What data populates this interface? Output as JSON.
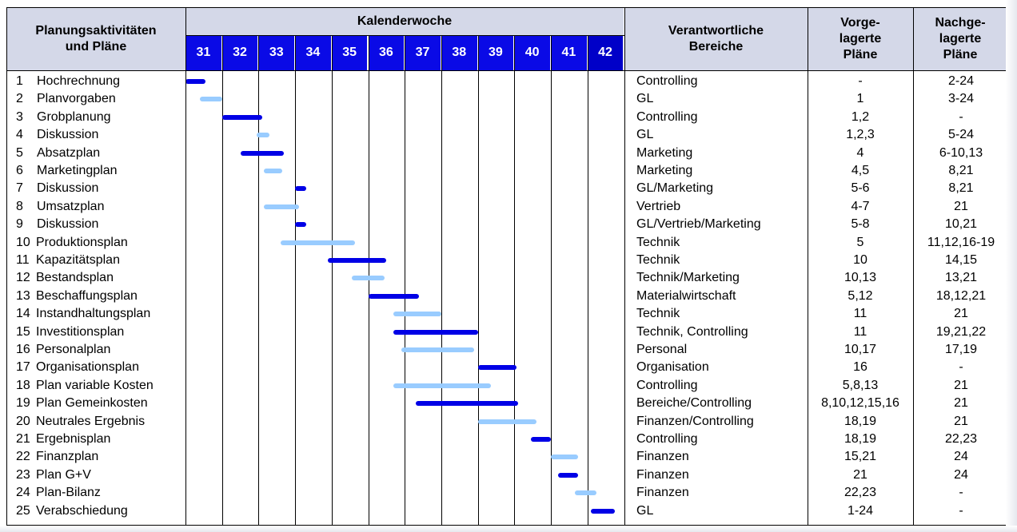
{
  "header": {
    "activities": "Planungsaktivitäten\nund Pläne",
    "calendar_week": "Kalenderwoche",
    "responsible": "Verantwortliche\nBereiche",
    "upstream": "Vorge-\nlagerte\nPläne",
    "downstream": "Nachge-\nlagerte\nPläne"
  },
  "colors": {
    "primary_bar": "#0000e6",
    "secondary_bar": "#99ccff",
    "week_header": "#0a0ae6",
    "header_bg": "#d4d8e8"
  },
  "chart_data": {
    "type": "gantt",
    "x_axis_label": "Kalenderwoche",
    "weeks": [
      "31",
      "32",
      "33",
      "34",
      "35",
      "36",
      "37",
      "38",
      "39",
      "40",
      "41",
      "42"
    ],
    "tasks": [
      {
        "num": "1",
        "name": "Hochrechnung",
        "responsible": "Controlling",
        "upstream": "-",
        "downstream": "2-24",
        "start": 31.0,
        "end": 31.55,
        "color": "dark"
      },
      {
        "num": "2",
        "name": "Planvorgaben",
        "responsible": "GL",
        "upstream": "1",
        "downstream": "3-24",
        "start": 31.4,
        "end": 32.0,
        "color": "light"
      },
      {
        "num": "3",
        "name": "Grobplanung",
        "responsible": "Controlling",
        "upstream": "1,2",
        "downstream": "-",
        "start": 32.0,
        "end": 33.1,
        "color": "dark"
      },
      {
        "num": "4",
        "name": "Diskussion",
        "responsible": "GL",
        "upstream": "1,2,3",
        "downstream": "5-24",
        "start": 32.95,
        "end": 33.3,
        "color": "light"
      },
      {
        "num": "5",
        "name": "Absatzplan",
        "responsible": "Marketing",
        "upstream": "4",
        "downstream": "6-10,13",
        "start": 32.5,
        "end": 33.7,
        "color": "dark"
      },
      {
        "num": "6",
        "name": "Marketingplan",
        "responsible": "Marketing",
        "upstream": "4,5",
        "downstream": "8,21",
        "start": 33.15,
        "end": 33.65,
        "color": "light"
      },
      {
        "num": "7",
        "name": "Diskussion",
        "responsible": "GL/Marketing",
        "upstream": "5-6",
        "downstream": "8,21",
        "start": 34.0,
        "end": 34.3,
        "color": "dark"
      },
      {
        "num": "8",
        "name": "Umsatzplan",
        "responsible": "Vertrieb",
        "upstream": "4-7",
        "downstream": "21",
        "start": 33.15,
        "end": 34.1,
        "color": "light"
      },
      {
        "num": "9",
        "name": "Diskussion",
        "responsible": "GL/Vertrieb/Marketing",
        "upstream": "5-8",
        "downstream": "10,21",
        "start": 34.0,
        "end": 34.3,
        "color": "dark"
      },
      {
        "num": "10",
        "name": "Produktionsplan",
        "responsible": "Technik",
        "upstream": "5",
        "downstream": "11,12,16-19",
        "start": 33.6,
        "end": 35.65,
        "color": "light"
      },
      {
        "num": "11",
        "name": "Kapazitätsplan",
        "responsible": "Technik",
        "upstream": "10",
        "downstream": "14,15",
        "start": 34.9,
        "end": 36.5,
        "color": "dark"
      },
      {
        "num": "12",
        "name": "Bestandsplan",
        "responsible": "Technik/Marketing",
        "upstream": "10,13",
        "downstream": "13,21",
        "start": 35.55,
        "end": 36.45,
        "color": "light"
      },
      {
        "num": "13",
        "name": "Beschaffungsplan",
        "responsible": "Materialwirtschaft",
        "upstream": "5,12",
        "downstream": "18,12,21",
        "start": 36.0,
        "end": 37.4,
        "color": "dark"
      },
      {
        "num": "14",
        "name": "Instandhaltungsplan",
        "responsible": "Technik",
        "upstream": "11",
        "downstream": "21",
        "start": 36.7,
        "end": 38.0,
        "color": "light"
      },
      {
        "num": "15",
        "name": "Investitionsplan",
        "responsible": "Technik, Controlling",
        "upstream": "11",
        "downstream": "19,21,22",
        "start": 36.7,
        "end": 39.0,
        "color": "dark"
      },
      {
        "num": "16",
        "name": "Personalplan",
        "responsible": "Personal",
        "upstream": "10,17",
        "downstream": "17,19",
        "start": 36.9,
        "end": 38.9,
        "color": "light"
      },
      {
        "num": "17",
        "name": "Organisationsplan",
        "responsible": "Organisation",
        "upstream": "16",
        "downstream": "-",
        "start": 39.0,
        "end": 40.05,
        "color": "dark"
      },
      {
        "num": "18",
        "name": "Plan variable Kosten",
        "responsible": "Controlling",
        "upstream": "5,8,13",
        "downstream": "21",
        "start": 36.7,
        "end": 39.35,
        "color": "light"
      },
      {
        "num": "19",
        "name": "Plan Gemeinkosten",
        "responsible": "Bereiche/Controlling",
        "upstream": "8,10,12,15,16",
        "downstream": "21",
        "start": 37.3,
        "end": 40.1,
        "color": "dark"
      },
      {
        "num": "20",
        "name": "Neutrales Ergebnis",
        "responsible": "Finanzen/Controlling",
        "upstream": "18,19",
        "downstream": "21",
        "start": 39.0,
        "end": 40.6,
        "color": "light"
      },
      {
        "num": "21",
        "name": "Ergebnisplan",
        "responsible": "Controlling",
        "upstream": "18,19",
        "downstream": "22,23",
        "start": 40.45,
        "end": 41.0,
        "color": "dark"
      },
      {
        "num": "22",
        "name": "Finanzplan",
        "responsible": "Finanzen",
        "upstream": "15,21",
        "downstream": "24",
        "start": 41.0,
        "end": 41.75,
        "color": "light"
      },
      {
        "num": "23",
        "name": "Plan G+V",
        "responsible": "Finanzen",
        "upstream": "21",
        "downstream": "24",
        "start": 41.2,
        "end": 41.75,
        "color": "dark"
      },
      {
        "num": "24",
        "name": "Plan-Bilanz",
        "responsible": "Finanzen",
        "upstream": "22,23",
        "downstream": "-",
        "start": 41.65,
        "end": 42.25,
        "color": "light"
      },
      {
        "num": "25",
        "name": "Verabschiedung",
        "responsible": "GL",
        "upstream": "1-24",
        "downstream": "-",
        "start": 42.1,
        "end": 42.75,
        "color": "dark"
      }
    ]
  }
}
